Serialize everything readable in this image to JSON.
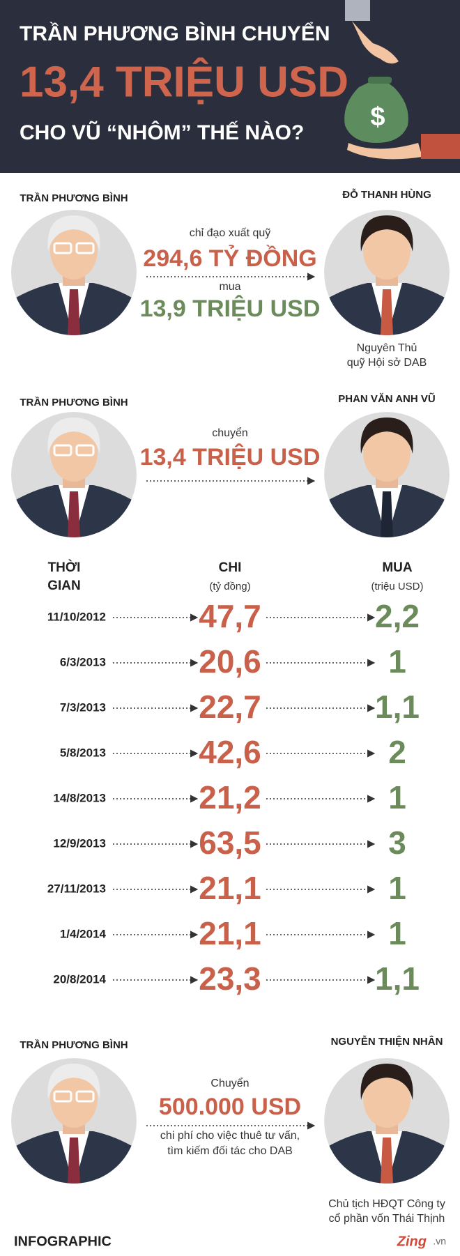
{
  "header": {
    "line1": "TRẦN PHƯƠNG BÌNH CHUYỂN",
    "line2": "13,4 TRIỆU USD",
    "line3": "CHO VŨ “NHÔM” THẾ NÀO?",
    "symbol": "$"
  },
  "transfers": [
    {
      "from": "TRẦN PHƯƠNG BÌNH",
      "to": "ĐỖ THANH HÙNG",
      "lines": [
        "chỉ đạo xuất quỹ",
        "294,6 TỶ ĐỒNG",
        "mua",
        "13,9 TRIỆU USD"
      ],
      "caption": [
        "Nguyên Thủ",
        "quỹ Hội sở DAB"
      ]
    },
    {
      "from": "TRẦN PHƯƠNG BÌNH",
      "to": "PHAN VĂN ANH VŨ",
      "lines": [
        "chuyển",
        "13,4 TRIỆU USD"
      ]
    },
    {
      "from": "TRẦN PHƯƠNG BÌNH",
      "to": "NGUYỄN THIỆN NHÂN",
      "lines": [
        "Chuyển",
        "500.000 USD",
        "chi phí cho việc thuê tư vấn,",
        "tìm kiếm đối tác cho DAB"
      ],
      "caption": [
        "Chủ tịch HĐQT Công ty",
        "cổ phần vốn Thái Thịnh"
      ]
    }
  ],
  "table": {
    "columns": [
      {
        "title": [
          "THỜI",
          "GIAN"
        ]
      },
      {
        "title": [
          "CHI"
        ],
        "unit": "(tỷ đồng)"
      },
      {
        "title": [
          "MUA"
        ],
        "unit": "(triệu USD)"
      }
    ],
    "rows": [
      [
        "11/10/2012",
        "47,7",
        "2,2"
      ],
      [
        "6/3/2013",
        "20,6",
        "1"
      ],
      [
        "7/3/2013",
        "22,7",
        "1,1"
      ],
      [
        "5/8/2013",
        "42,6",
        "2"
      ],
      [
        "14/8/2013",
        "21,2",
        "1"
      ],
      [
        "12/9/2013",
        "63,5",
        "3"
      ],
      [
        "27/11/2013",
        "21,1",
        "1"
      ],
      [
        "1/4/2014",
        "21,1",
        "1"
      ],
      [
        "20/8/2014",
        "23,3",
        "1,1"
      ]
    ]
  },
  "footer": {
    "label": "INFOGRAPHIC",
    "brand": "Zing",
    "domain": ".vn"
  }
}
